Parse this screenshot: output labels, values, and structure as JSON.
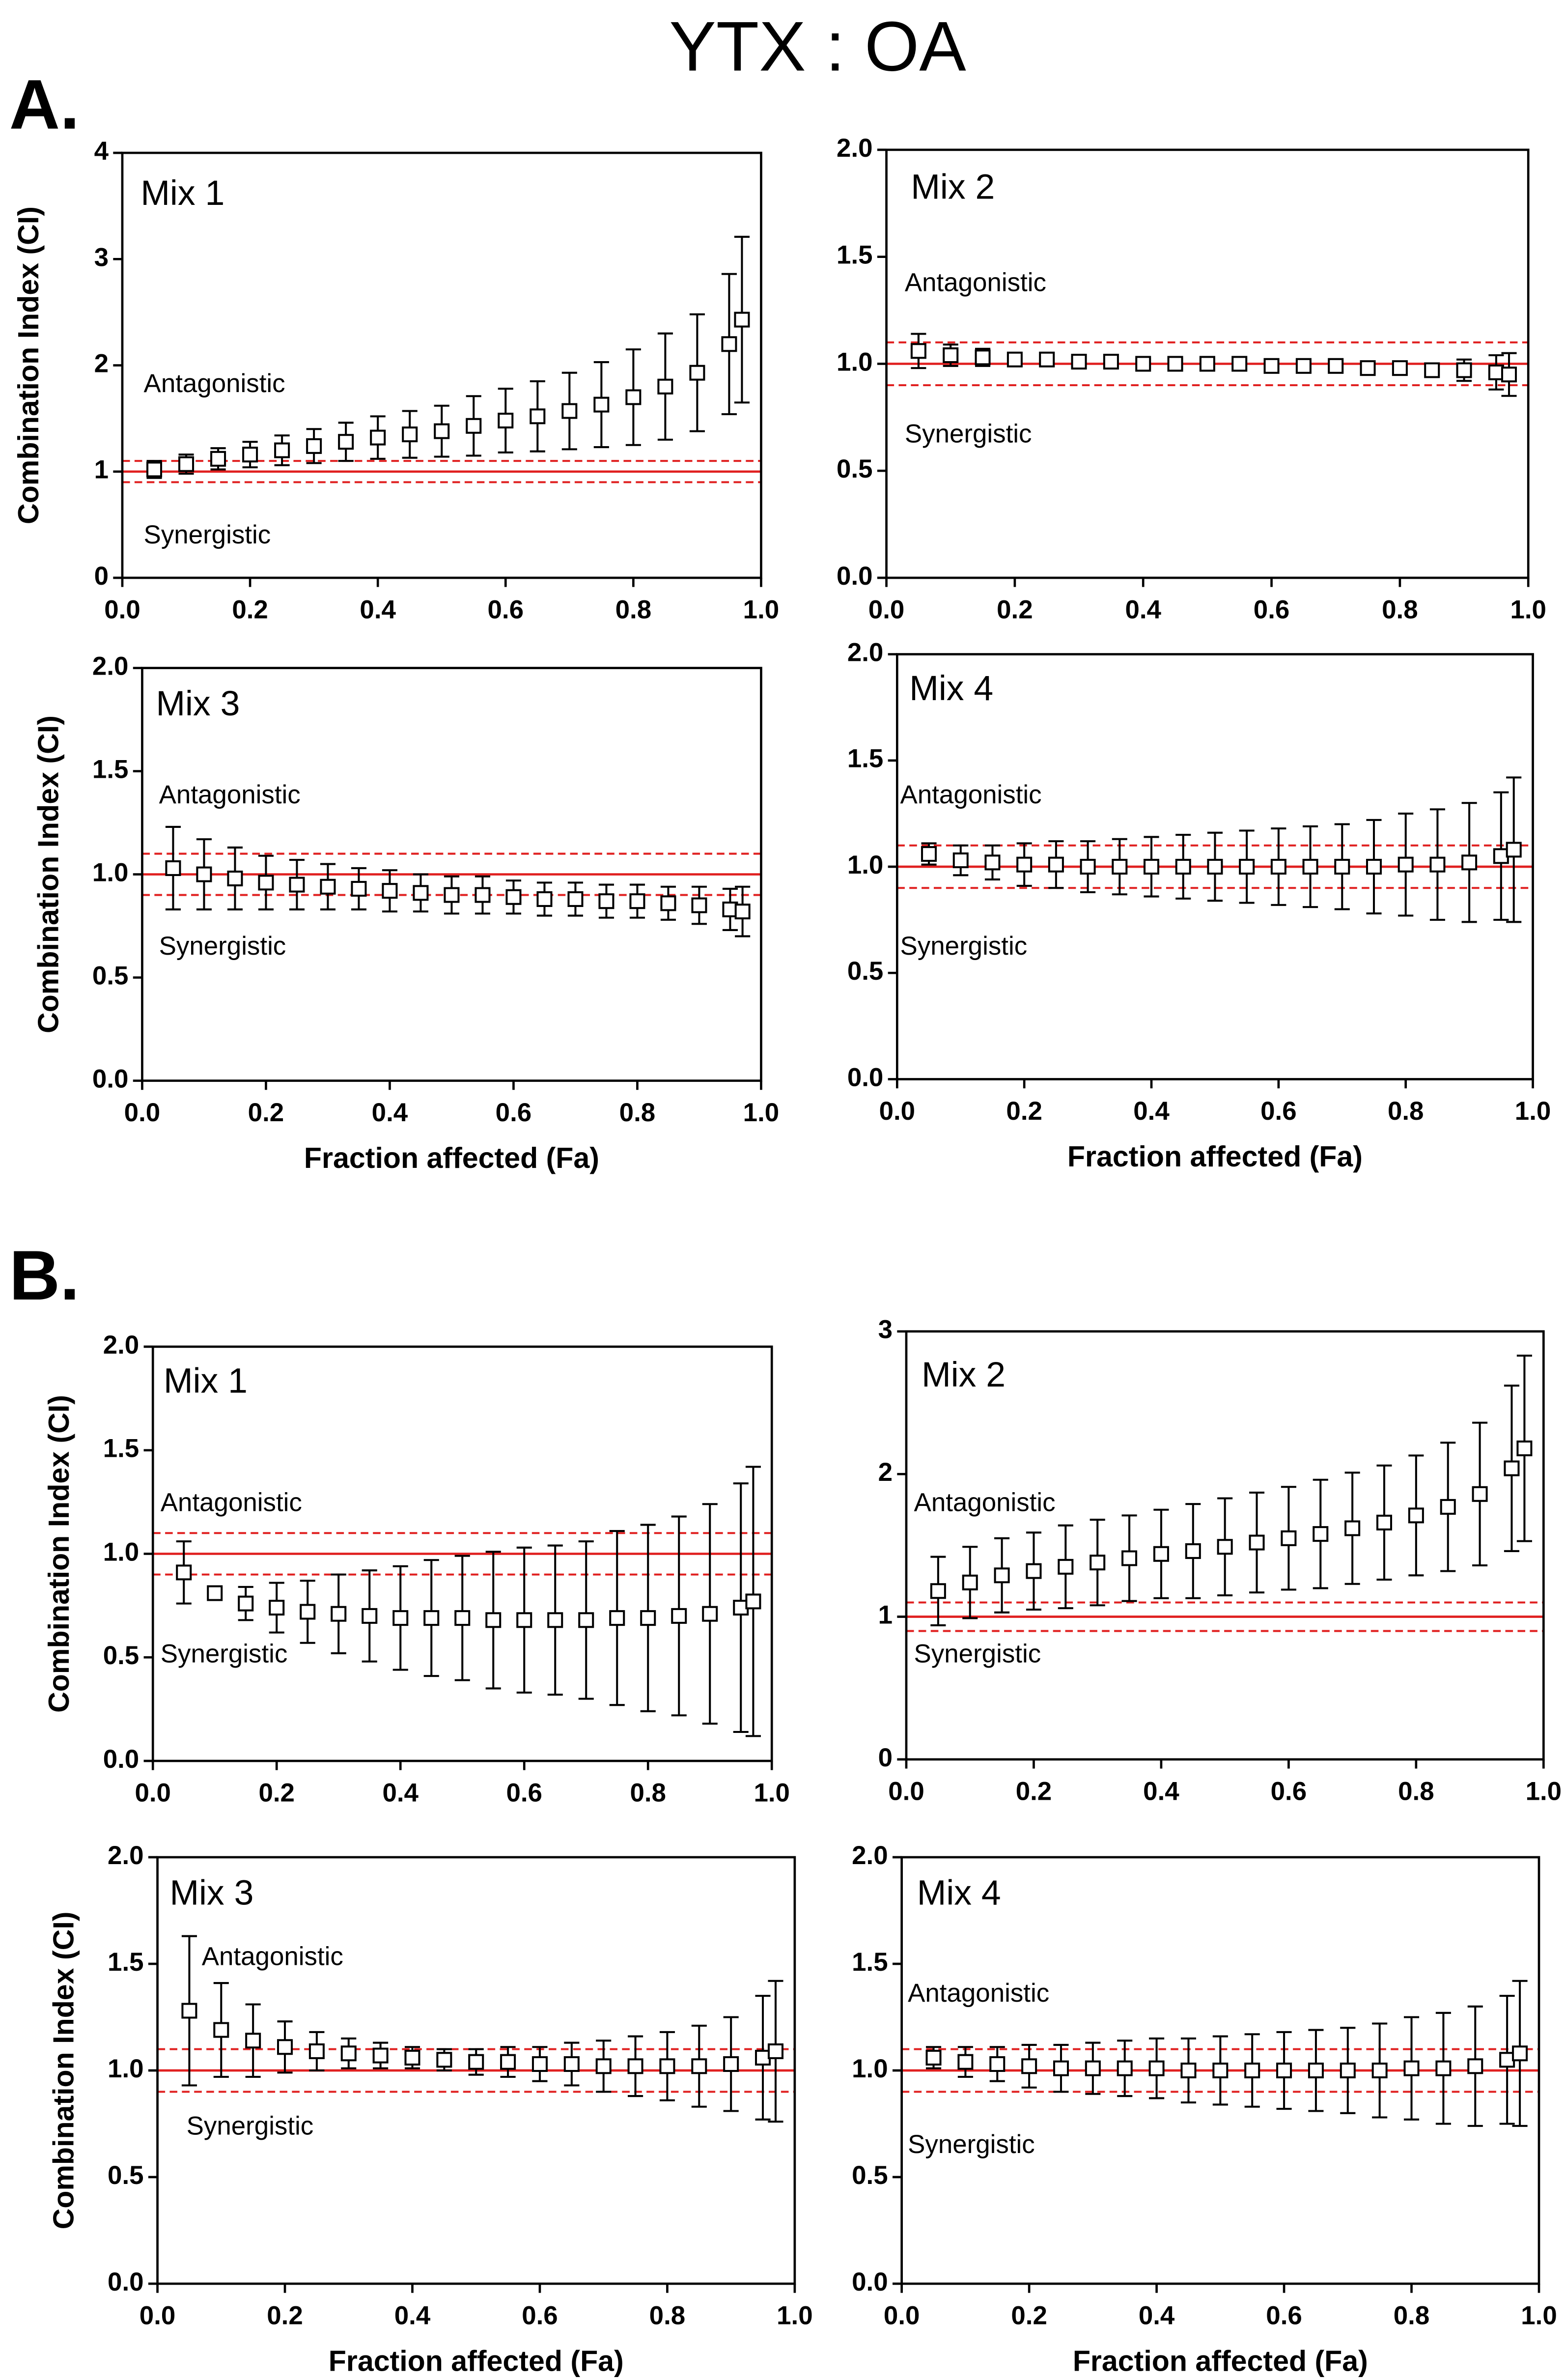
{
  "title": "YTX : OA",
  "panels": [
    "A.",
    "B."
  ],
  "chart_data": [
    {
      "type": "scatter",
      "label": "Mix 1",
      "y_label": "Combination Index (CI)",
      "annotations": [
        "Antagonistic",
        "Synergistic"
      ],
      "x": [
        0.05,
        0.1,
        0.15,
        0.2,
        0.25,
        0.3,
        0.35,
        0.4,
        0.45,
        0.5,
        0.55,
        0.6,
        0.65,
        0.7,
        0.75,
        0.8,
        0.85,
        0.9,
        0.95,
        0.97
      ],
      "values": [
        1.02,
        1.07,
        1.12,
        1.16,
        1.2,
        1.24,
        1.28,
        1.32,
        1.35,
        1.38,
        1.43,
        1.48,
        1.52,
        1.57,
        1.63,
        1.7,
        1.8,
        1.93,
        2.2,
        2.43
      ],
      "errors": [
        0.08,
        0.09,
        0.1,
        0.12,
        0.14,
        0.16,
        0.18,
        0.2,
        0.22,
        0.24,
        0.28,
        0.3,
        0.33,
        0.36,
        0.4,
        0.45,
        0.5,
        0.55,
        0.66,
        0.78
      ],
      "xlim": [
        0,
        1
      ],
      "xticks": [
        {
          "value": 0,
          "label": "0.0"
        },
        {
          "value": 0.2,
          "label": "0.2"
        },
        {
          "value": 0.4,
          "label": "0.4"
        },
        {
          "value": 0.6,
          "label": "0.6"
        },
        {
          "value": 0.8,
          "label": "0.8"
        },
        {
          "value": 1,
          "label": "1.0"
        }
      ],
      "ylim": [
        0,
        4
      ],
      "yticks": [
        0,
        1,
        2,
        3,
        4
      ],
      "hlines": [
        1
      ],
      "dashed_hlines": [
        0.9,
        1.1
      ],
      "line_color": "#e02020",
      "marker_color": "#000000"
    },
    {
      "type": "scatter",
      "label": "Mix 2",
      "annotations": [
        "Antagonistic",
        "Synergistic"
      ],
      "x": [
        0.05,
        0.1,
        0.15,
        0.2,
        0.25,
        0.3,
        0.35,
        0.4,
        0.45,
        0.5,
        0.55,
        0.6,
        0.65,
        0.7,
        0.75,
        0.8,
        0.85,
        0.9,
        0.95,
        0.97
      ],
      "values": [
        1.06,
        1.04,
        1.03,
        1.02,
        1.02,
        1.01,
        1.01,
        1.0,
        1.0,
        1.0,
        1.0,
        0.99,
        0.99,
        0.99,
        0.98,
        0.98,
        0.97,
        0.97,
        0.96,
        0.95
      ],
      "errors": [
        0.08,
        0.05,
        0.04,
        0.02,
        0.01,
        0.01,
        0,
        0,
        0,
        0,
        0,
        0,
        0,
        0,
        0.01,
        0.02,
        0.03,
        0.05,
        0.08,
        0.1
      ],
      "xlim": [
        0,
        1
      ],
      "xticks": [
        {
          "value": 0,
          "label": "0.0"
        },
        {
          "value": 0.2,
          "label": "0.2"
        },
        {
          "value": 0.4,
          "label": "0.4"
        },
        {
          "value": 0.6,
          "label": "0.6"
        },
        {
          "value": 0.8,
          "label": "0.8"
        },
        {
          "value": 1,
          "label": "1.0"
        }
      ],
      "ylim": [
        0,
        2
      ],
      "yticks": [
        {
          "value": 0,
          "label": "0.0"
        },
        {
          "value": 0.5,
          "label": "0.5"
        },
        {
          "value": 1,
          "label": "1.0"
        },
        {
          "value": 1.5,
          "label": "1.5"
        },
        {
          "value": 2,
          "label": "2.0"
        }
      ],
      "hlines": [
        1
      ],
      "dashed_hlines": [
        0.9,
        1.1
      ],
      "line_color": "#e02020",
      "marker_color": "#000000"
    },
    {
      "type": "scatter",
      "label": "Mix 3",
      "y_label": "Combination Index (CI)",
      "x_label": "Fraction affected (Fa)",
      "annotations": [
        "Antagonistic",
        "Synergistic"
      ],
      "x": [
        0.05,
        0.1,
        0.15,
        0.2,
        0.25,
        0.3,
        0.35,
        0.4,
        0.45,
        0.5,
        0.55,
        0.6,
        0.65,
        0.7,
        0.75,
        0.8,
        0.85,
        0.9,
        0.95,
        0.97
      ],
      "values": [
        1.03,
        1.0,
        0.98,
        0.96,
        0.95,
        0.94,
        0.93,
        0.92,
        0.91,
        0.9,
        0.9,
        0.89,
        0.88,
        0.88,
        0.87,
        0.87,
        0.86,
        0.85,
        0.83,
        0.82
      ],
      "errors": [
        0.2,
        0.17,
        0.15,
        0.13,
        0.12,
        0.11,
        0.1,
        0.1,
        0.09,
        0.09,
        0.09,
        0.08,
        0.08,
        0.08,
        0.08,
        0.08,
        0.08,
        0.09,
        0.1,
        0.12
      ],
      "xlim": [
        0,
        1
      ],
      "xticks": [
        {
          "value": 0,
          "label": "0.0"
        },
        {
          "value": 0.2,
          "label": "0.2"
        },
        {
          "value": 0.4,
          "label": "0.4"
        },
        {
          "value": 0.6,
          "label": "0.6"
        },
        {
          "value": 0.8,
          "label": "0.8"
        },
        {
          "value": 1,
          "label": "1.0"
        }
      ],
      "ylim": [
        0,
        2
      ],
      "yticks": [
        {
          "value": 0,
          "label": "0.0"
        },
        {
          "value": 0.5,
          "label": "0.5"
        },
        {
          "value": 1,
          "label": "1.0"
        },
        {
          "value": 1.5,
          "label": "1.5"
        },
        {
          "value": 2,
          "label": "2.0"
        }
      ],
      "hlines": [
        1
      ],
      "dashed_hlines": [
        0.9,
        1.1
      ],
      "line_color": "#e02020",
      "marker_color": "#000000"
    },
    {
      "type": "scatter",
      "label": "Mix 4",
      "x_label": "Fraction affected (Fa)",
      "annotations": [
        "Antagonistic",
        "Synergistic"
      ],
      "x": [
        0.05,
        0.1,
        0.15,
        0.2,
        0.25,
        0.3,
        0.35,
        0.4,
        0.45,
        0.5,
        0.55,
        0.6,
        0.65,
        0.7,
        0.75,
        0.8,
        0.85,
        0.9,
        0.95,
        0.97
      ],
      "values": [
        1.06,
        1.03,
        1.02,
        1.01,
        1.01,
        1.0,
        1.0,
        1.0,
        1.0,
        1.0,
        1.0,
        1.0,
        1.0,
        1.0,
        1.0,
        1.01,
        1.01,
        1.02,
        1.05,
        1.08
      ],
      "errors": [
        0.05,
        0.07,
        0.08,
        0.1,
        0.11,
        0.12,
        0.13,
        0.14,
        0.15,
        0.16,
        0.17,
        0.18,
        0.19,
        0.2,
        0.22,
        0.24,
        0.26,
        0.28,
        0.3,
        0.34
      ],
      "xlim": [
        0,
        1
      ],
      "xticks": [
        {
          "value": 0,
          "label": "0.0"
        },
        {
          "value": 0.2,
          "label": "0.2"
        },
        {
          "value": 0.4,
          "label": "0.4"
        },
        {
          "value": 0.6,
          "label": "0.6"
        },
        {
          "value": 0.8,
          "label": "0.8"
        },
        {
          "value": 1,
          "label": "1.0"
        }
      ],
      "ylim": [
        0,
        2
      ],
      "yticks": [
        {
          "value": 0,
          "label": "0.0"
        },
        {
          "value": 0.5,
          "label": "0.5"
        },
        {
          "value": 1,
          "label": "1.0"
        },
        {
          "value": 1.5,
          "label": "1.5"
        },
        {
          "value": 2,
          "label": "2.0"
        }
      ],
      "hlines": [
        1
      ],
      "dashed_hlines": [
        0.9,
        1.1
      ],
      "line_color": "#e02020",
      "marker_color": "#000000"
    },
    {
      "type": "scatter",
      "label": "Mix 1",
      "y_label": "Combination Index (CI)",
      "annotations": [
        "Antagonistic",
        "Synergistic"
      ],
      "x": [
        0.05,
        0.1,
        0.15,
        0.2,
        0.25,
        0.3,
        0.35,
        0.4,
        0.45,
        0.5,
        0.55,
        0.6,
        0.65,
        0.7,
        0.75,
        0.8,
        0.85,
        0.9,
        0.95,
        0.97
      ],
      "values": [
        0.91,
        0.81,
        0.76,
        0.74,
        0.72,
        0.71,
        0.7,
        0.69,
        0.69,
        0.69,
        0.68,
        0.68,
        0.68,
        0.68,
        0.69,
        0.69,
        0.7,
        0.71,
        0.74,
        0.77
      ],
      "errors": [
        0.15,
        0,
        0.08,
        0.12,
        0.15,
        0.19,
        0.22,
        0.25,
        0.28,
        0.3,
        0.33,
        0.35,
        0.36,
        0.38,
        0.42,
        0.45,
        0.48,
        0.53,
        0.6,
        0.65
      ],
      "xlim": [
        0,
        1
      ],
      "xticks": [
        {
          "value": 0,
          "label": "0.0"
        },
        {
          "value": 0.2,
          "label": "0.2"
        },
        {
          "value": 0.4,
          "label": "0.4"
        },
        {
          "value": 0.6,
          "label": "0.6"
        },
        {
          "value": 0.8,
          "label": "0.8"
        },
        {
          "value": 1,
          "label": "1.0"
        }
      ],
      "ylim": [
        0,
        2
      ],
      "yticks": [
        {
          "value": 0,
          "label": "0.0"
        },
        {
          "value": 0.5,
          "label": "0.5"
        },
        {
          "value": 1,
          "label": "1.0"
        },
        {
          "value": 1.5,
          "label": "1.5"
        },
        {
          "value": 2,
          "label": "2.0"
        }
      ],
      "hlines": [
        1
      ],
      "dashed_hlines": [
        0.9,
        1.1
      ],
      "line_color": "#e02020",
      "marker_color": "#000000"
    },
    {
      "type": "scatter",
      "label": "Mix 2",
      "annotations": [
        "Antagonistic",
        "Synergistic"
      ],
      "x": [
        0.05,
        0.1,
        0.15,
        0.2,
        0.25,
        0.3,
        0.35,
        0.4,
        0.45,
        0.5,
        0.55,
        0.6,
        0.65,
        0.7,
        0.75,
        0.8,
        0.85,
        0.9,
        0.95,
        0.97
      ],
      "values": [
        1.18,
        1.24,
        1.29,
        1.32,
        1.35,
        1.38,
        1.41,
        1.44,
        1.46,
        1.49,
        1.52,
        1.55,
        1.58,
        1.62,
        1.66,
        1.71,
        1.77,
        1.86,
        2.04,
        2.18
      ],
      "errors": [
        0.24,
        0.25,
        0.26,
        0.27,
        0.29,
        0.3,
        0.3,
        0.31,
        0.33,
        0.34,
        0.35,
        0.36,
        0.38,
        0.39,
        0.4,
        0.42,
        0.45,
        0.5,
        0.58,
        0.65
      ],
      "xlim": [
        0,
        1
      ],
      "xticks": [
        {
          "value": 0,
          "label": "0.0"
        },
        {
          "value": 0.2,
          "label": "0.2"
        },
        {
          "value": 0.4,
          "label": "0.4"
        },
        {
          "value": 0.6,
          "label": "0.6"
        },
        {
          "value": 0.8,
          "label": "0.8"
        },
        {
          "value": 1,
          "label": "1.0"
        }
      ],
      "ylim": [
        0,
        3
      ],
      "yticks": [
        0,
        1,
        2,
        3
      ],
      "hlines": [
        1
      ],
      "dashed_hlines": [
        0.9,
        1.1
      ],
      "line_color": "#e02020",
      "marker_color": "#000000"
    },
    {
      "type": "scatter",
      "label": "Mix 3",
      "y_label": "Combination Index (CI)",
      "x_label": "Fraction affected (Fa)",
      "annotations": [
        "Antagonistic",
        "Synergistic"
      ],
      "x": [
        0.05,
        0.1,
        0.15,
        0.2,
        0.25,
        0.3,
        0.35,
        0.4,
        0.45,
        0.5,
        0.55,
        0.6,
        0.65,
        0.7,
        0.75,
        0.8,
        0.85,
        0.9,
        0.95,
        0.97
      ],
      "values": [
        1.28,
        1.19,
        1.14,
        1.11,
        1.09,
        1.08,
        1.07,
        1.06,
        1.05,
        1.04,
        1.04,
        1.03,
        1.03,
        1.02,
        1.02,
        1.02,
        1.02,
        1.03,
        1.06,
        1.09
      ],
      "errors": [
        0.35,
        0.22,
        0.17,
        0.12,
        0.09,
        0.07,
        0.06,
        0.05,
        0.05,
        0.06,
        0.07,
        0.08,
        0.1,
        0.12,
        0.14,
        0.16,
        0.19,
        0.22,
        0.29,
        0.33
      ],
      "xlim": [
        0,
        1
      ],
      "xticks": [
        {
          "value": 0,
          "label": "0.0"
        },
        {
          "value": 0.2,
          "label": "0.2"
        },
        {
          "value": 0.4,
          "label": "0.4"
        },
        {
          "value": 0.6,
          "label": "0.6"
        },
        {
          "value": 0.8,
          "label": "0.8"
        },
        {
          "value": 1,
          "label": "1.0"
        }
      ],
      "ylim": [
        0,
        2
      ],
      "yticks": [
        {
          "value": 0,
          "label": "0.0"
        },
        {
          "value": 0.5,
          "label": "0.5"
        },
        {
          "value": 1,
          "label": "1.0"
        },
        {
          "value": 1.5,
          "label": "1.5"
        },
        {
          "value": 2,
          "label": "2.0"
        }
      ],
      "hlines": [
        1
      ],
      "dashed_hlines": [
        0.9,
        1.1
      ],
      "line_color": "#e02020",
      "marker_color": "#000000"
    },
    {
      "type": "scatter",
      "label": "Mix 4",
      "x_label": "Fraction affected (Fa)",
      "annotations": [
        "Antagonistic",
        "Synergistic"
      ],
      "x": [
        0.05,
        0.1,
        0.15,
        0.2,
        0.25,
        0.3,
        0.35,
        0.4,
        0.45,
        0.5,
        0.55,
        0.6,
        0.65,
        0.7,
        0.75,
        0.8,
        0.85,
        0.9,
        0.95,
        0.97
      ],
      "values": [
        1.06,
        1.04,
        1.03,
        1.02,
        1.01,
        1.01,
        1.01,
        1.01,
        1.0,
        1.0,
        1.0,
        1.0,
        1.0,
        1.0,
        1.0,
        1.01,
        1.01,
        1.02,
        1.05,
        1.08
      ],
      "errors": [
        0.05,
        0.07,
        0.08,
        0.1,
        0.11,
        0.12,
        0.13,
        0.14,
        0.15,
        0.16,
        0.17,
        0.18,
        0.19,
        0.2,
        0.22,
        0.24,
        0.26,
        0.28,
        0.3,
        0.34
      ],
      "xlim": [
        0,
        1
      ],
      "xticks": [
        {
          "value": 0,
          "label": "0.0"
        },
        {
          "value": 0.2,
          "label": "0.2"
        },
        {
          "value": 0.4,
          "label": "0.4"
        },
        {
          "value": 0.6,
          "label": "0.6"
        },
        {
          "value": 0.8,
          "label": "0.8"
        },
        {
          "value": 1,
          "label": "1.0"
        }
      ],
      "ylim": [
        0,
        2
      ],
      "yticks": [
        {
          "value": 0,
          "label": "0.0"
        },
        {
          "value": 0.5,
          "label": "0.5"
        },
        {
          "value": 1,
          "label": "1.0"
        },
        {
          "value": 1.5,
          "label": "1.5"
        },
        {
          "value": 2,
          "label": "2.0"
        }
      ],
      "hlines": [
        1
      ],
      "dashed_hlines": [
        0.9,
        1.1
      ],
      "line_color": "#e02020",
      "marker_color": "#000000"
    }
  ]
}
